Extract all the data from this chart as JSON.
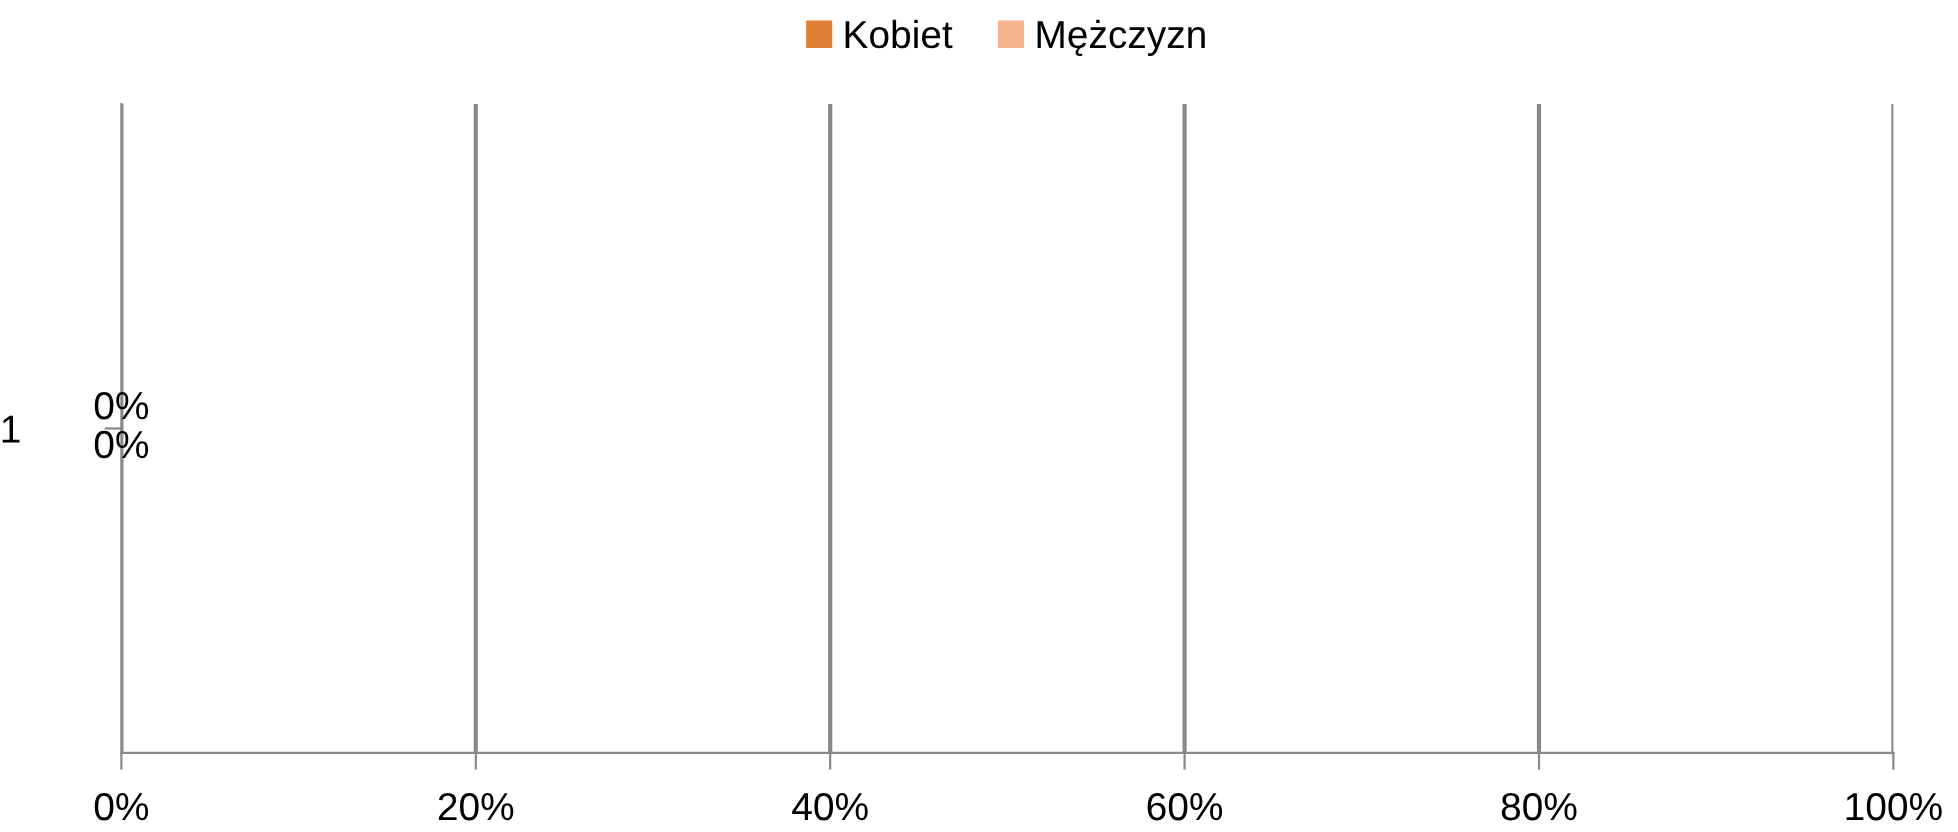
{
  "chart_data": {
    "type": "bar",
    "orientation": "horizontal",
    "stacked": true,
    "categories": [
      "1"
    ],
    "series": [
      {
        "name": "Kobiet",
        "color": "#e07f35",
        "values": [
          0
        ],
        "value_labels": [
          "0%"
        ]
      },
      {
        "name": "Mężczyzn",
        "color": "#f5b48f",
        "values": [
          0
        ],
        "value_labels": [
          "0%"
        ]
      }
    ],
    "xlim": [
      0,
      100
    ],
    "xticks": [
      {
        "value": 0,
        "label": "0%"
      },
      {
        "value": 20,
        "label": "20%"
      },
      {
        "value": 40,
        "label": "40%"
      },
      {
        "value": 60,
        "label": "60%"
      },
      {
        "value": 80,
        "label": "80%"
      },
      {
        "value": 100,
        "label": "100%"
      }
    ],
    "grid": "x",
    "legend": "top"
  }
}
